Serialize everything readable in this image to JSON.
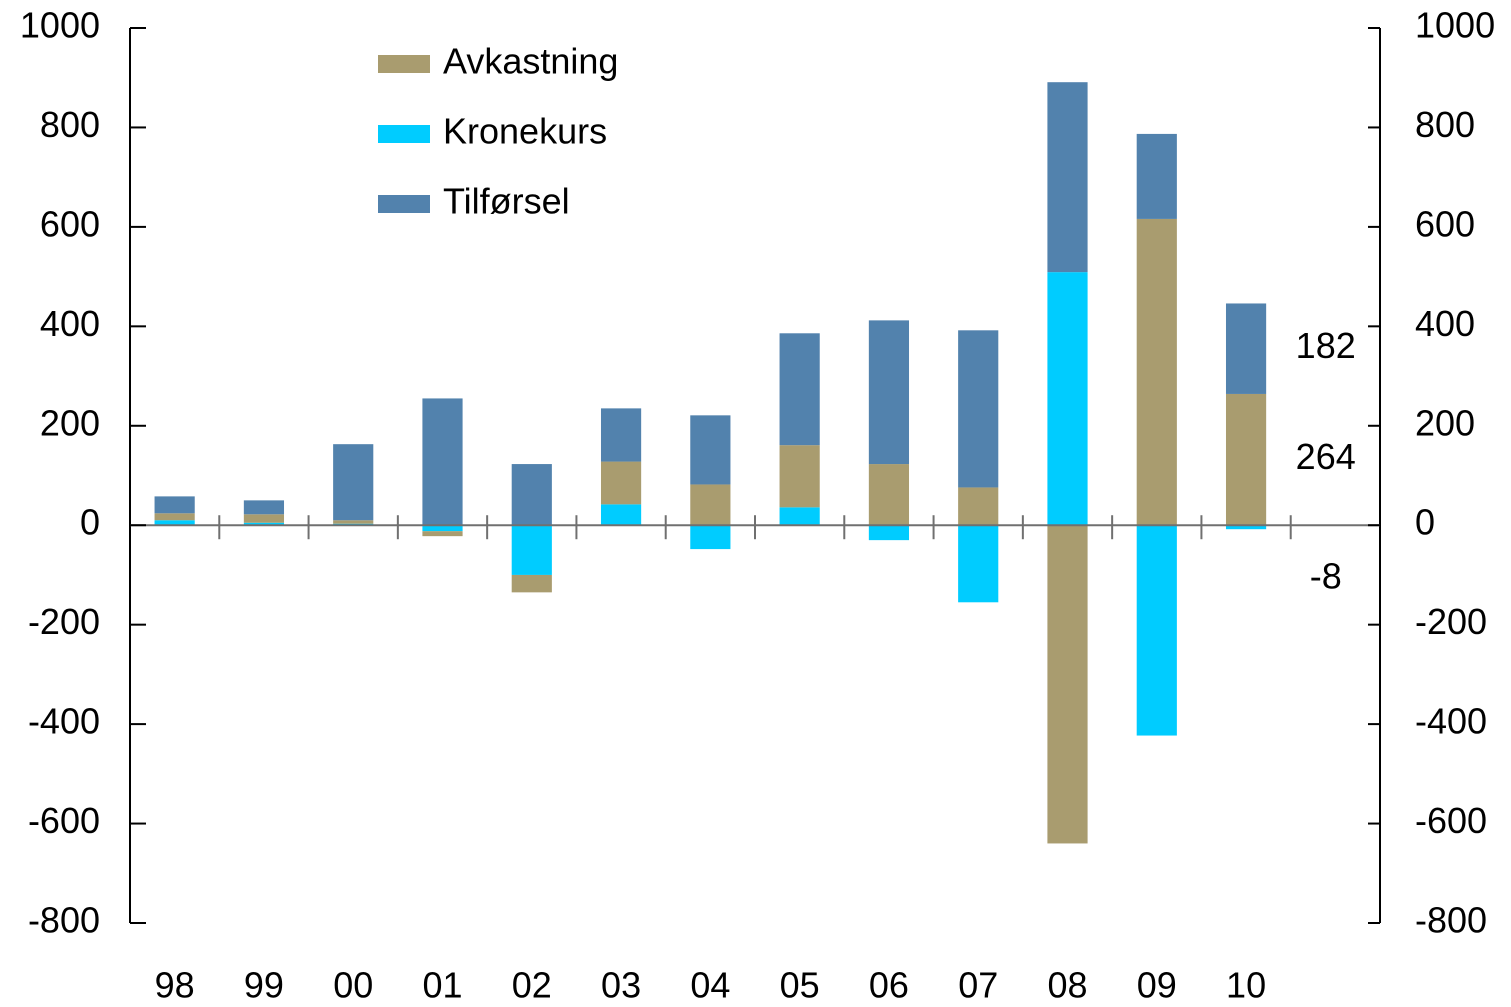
{
  "chart_data": {
    "type": "bar",
    "stacked": true,
    "categories": [
      "98",
      "99",
      "00",
      "01",
      "02",
      "03",
      "04",
      "05",
      "06",
      "07",
      "08",
      "09",
      "10",
      null
    ],
    "series": [
      {
        "name": "Avkastning",
        "color": "#a99c6f",
        "values": [
          14,
          17,
          7,
          -10,
          -35,
          86,
          82,
          125,
          123,
          76,
          -640,
          616,
          264,
          null
        ]
      },
      {
        "name": "Kronekurs",
        "color": "#00ccff",
        "values": [
          10,
          5,
          3,
          -12,
          -100,
          42,
          -48,
          36,
          -30,
          -155,
          509,
          -423,
          -8,
          null
        ]
      },
      {
        "name": "Tilførsel",
        "color": "#5282ad",
        "values": [
          34,
          28,
          153,
          255,
          123,
          107,
          139,
          225,
          289,
          316,
          382,
          171,
          182,
          null
        ]
      }
    ],
    "ylim": [
      -800,
      1000
    ],
    "yticks": [
      -800,
      -600,
      -400,
      -200,
      0,
      200,
      400,
      600,
      800,
      1000
    ],
    "y2lim": [
      -800,
      1000
    ],
    "y2ticks": [
      -800,
      -600,
      -400,
      -200,
      0,
      200,
      400,
      600,
      800,
      1000
    ],
    "legend": "top-left",
    "grid": false
  }
}
